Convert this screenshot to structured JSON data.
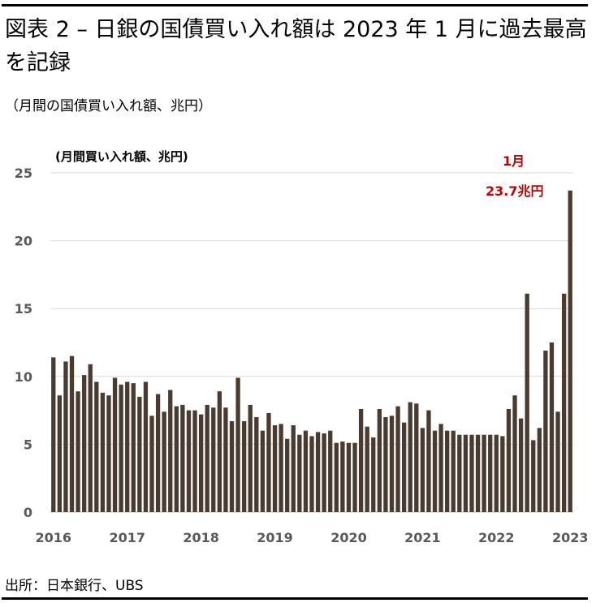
{
  "header": {
    "title": "図表 2 – 日銀の国債買い入れ額は 2023 年 1 月に過去最高を記録",
    "subtitle": "（月間の国債買い入れ額、兆円）"
  },
  "footer": {
    "source": "出所：日本銀行、UBS"
  },
  "colors": {
    "bar": "#4a3b30",
    "annotation": "#c00000",
    "grid": "#d9d9d9"
  },
  "chart_data": {
    "type": "bar",
    "ylabel": "(月間買い入れ額、兆円)",
    "ylim": [
      0,
      25
    ],
    "yticks": [
      0,
      5,
      10,
      15,
      20,
      25
    ],
    "xtick_labels": [
      "2016",
      "2017",
      "2018",
      "2019",
      "2020",
      "2021",
      "2022",
      "2023"
    ],
    "grid": true,
    "annotation": {
      "month": "1月",
      "value": "23.7兆円"
    },
    "series": [
      {
        "values": [
          11.4,
          8.6,
          11.1,
          11.5,
          8.9,
          10.1,
          10.9,
          9.6,
          8.8,
          8.6,
          9.9,
          9.4,
          9.6,
          9.5,
          8.5,
          9.6,
          7.1,
          8.7,
          7.4,
          9.0,
          7.8,
          7.9,
          7.5,
          7.5,
          7.2,
          7.9,
          7.7,
          8.9,
          7.7,
          6.7,
          9.9,
          6.7,
          7.9,
          7.0,
          6.0,
          7.3,
          6.4,
          6.5,
          5.4,
          6.4,
          5.7,
          6.0,
          5.6,
          5.9,
          5.8,
          6.0,
          5.1,
          5.2,
          5.1,
          5.1,
          7.6,
          6.3,
          5.5,
          7.6,
          7.0,
          7.1,
          7.8,
          6.6,
          8.1,
          8.0,
          6.2,
          7.5,
          6.0,
          6.5,
          6.0,
          6.0,
          5.7,
          5.7,
          5.7,
          5.7,
          5.7,
          5.7,
          5.7,
          5.6,
          7.6,
          8.6,
          6.9,
          16.1,
          5.3,
          6.2,
          11.9,
          12.5,
          7.4,
          16.1,
          23.7
        ]
      }
    ]
  }
}
